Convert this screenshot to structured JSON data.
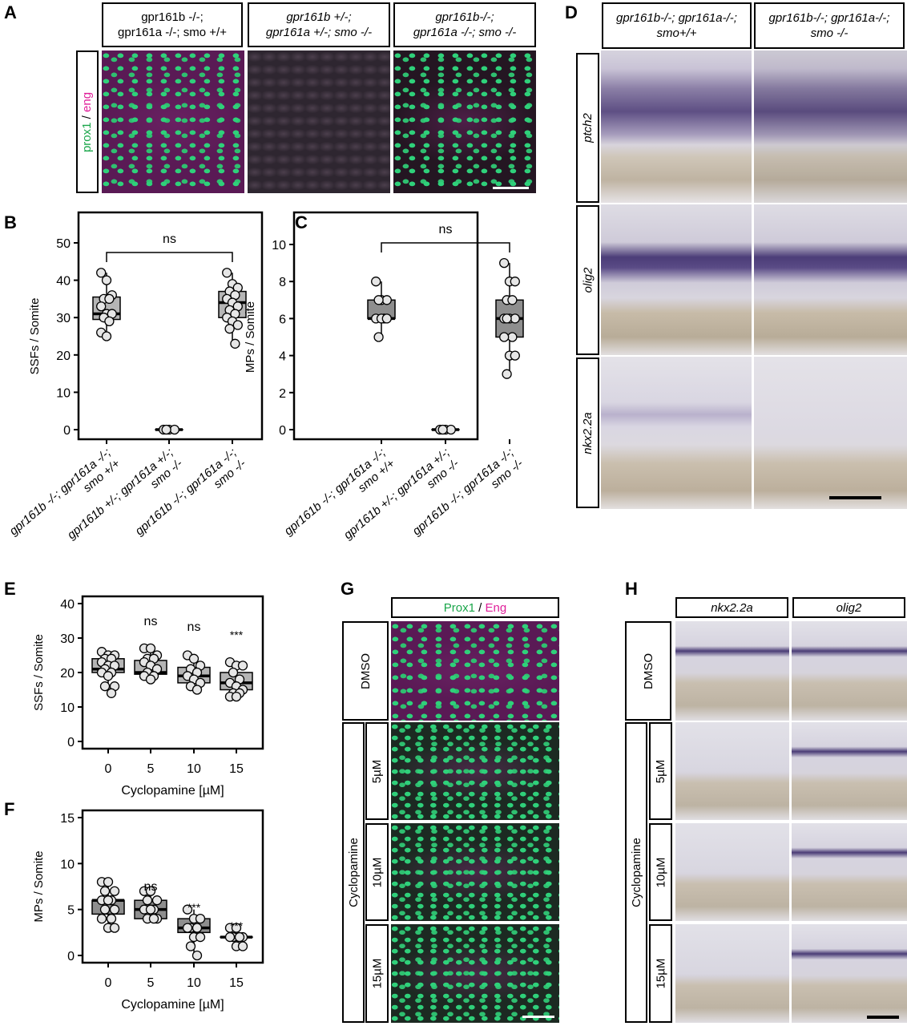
{
  "panel_letters": {
    "a": "A",
    "b": "B",
    "c": "C",
    "d": "D",
    "e": "E",
    "f": "F",
    "g": "G",
    "h": "H"
  },
  "panel_a": {
    "headers": [
      {
        "line1": "gpr161b -/-;",
        "line2": "gpr161a -/-; smo +/+"
      },
      {
        "line1": "gpr161b +/-;",
        "line2": "gpr161a +/-; smo -/-"
      },
      {
        "line1": "gpr161b-/-;",
        "line2": "gpr161a -/-; smo -/-"
      }
    ],
    "side_label_a": "prox1",
    "side_label_sep": " / ",
    "side_label_b": "eng",
    "colors": {
      "prox1": "#1aa64a",
      "eng": "#e0209a"
    }
  },
  "panel_d": {
    "headers": [
      {
        "line1": "gpr161b-/-; gpr161a-/-;",
        "line2": "smo+/+"
      },
      {
        "line1": "gpr161b-/-; gpr161a-/-;",
        "line2": "smo -/-"
      }
    ],
    "rows": [
      "ptch2",
      "olig2",
      "nkx2.2a"
    ]
  },
  "panel_g": {
    "header_a": "Prox1",
    "header_sep": " / ",
    "header_b": "Eng",
    "dmso": "DMSO",
    "cyclopamine": "Cyclopamine",
    "doses": [
      "5µM",
      "10µM",
      "15µM"
    ]
  },
  "panel_h": {
    "headers": [
      "nkx2.2a",
      "olig2"
    ],
    "dmso": "DMSO",
    "cyclopamine": "Cyclopamine",
    "doses": [
      "5µM",
      "10µM",
      "15µM"
    ]
  },
  "chart_data": [
    {
      "id": "B",
      "type": "box",
      "ylabel": "SSFs / Somite",
      "ylim": [
        0,
        55
      ],
      "yticks": [
        0,
        10,
        20,
        30,
        40,
        50
      ],
      "categories": [
        {
          "l1": "gpr161b -/-; gpr161a -/-;",
          "l2": "smo +/+"
        },
        {
          "l1": "gpr161b +/-; gpr161a +/-;",
          "l2": "smo -/-"
        },
        {
          "l1": "gpr161b -/-; gpr161a -/-;",
          "l2": "smo -/-"
        }
      ],
      "boxes": [
        {
          "q1": 29.5,
          "median": 31,
          "q3": 35.5,
          "min": 25,
          "max": 42,
          "points": [
            42,
            40,
            36,
            35,
            35,
            33,
            31,
            31,
            30,
            29,
            26,
            25
          ]
        },
        {
          "q1": 0,
          "median": 0,
          "q3": 0,
          "min": 0,
          "max": 0,
          "points": [
            0,
            0,
            0,
            0
          ]
        },
        {
          "q1": 30,
          "median": 34,
          "q3": 37,
          "min": 23,
          "max": 42,
          "points": [
            42,
            39,
            38,
            37,
            36,
            35,
            34,
            33,
            32,
            31,
            30,
            29,
            28,
            27,
            23
          ]
        }
      ],
      "fill": "#b5b5b5",
      "comparisons": [
        {
          "from": 0,
          "to": 2,
          "label": "ns"
        }
      ]
    },
    {
      "id": "C",
      "type": "box",
      "ylabel": "MPs / Somite",
      "ylim": [
        0,
        11
      ],
      "yticks": [
        0,
        2,
        4,
        6,
        8,
        10
      ],
      "categories": [
        {
          "l1": "gpr161b -/-; gpr161a -/-;",
          "l2": "smo +/+"
        },
        {
          "l1": "gpr161b +/-; gpr161a +/-;",
          "l2": "smo -/-"
        },
        {
          "l1": "gpr161b -/-; gpr161a -/-;",
          "l2": "smo -/-"
        }
      ],
      "boxes": [
        {
          "q1": 6,
          "median": 6,
          "q3": 7,
          "min": 5,
          "max": 8,
          "points": [
            8,
            7,
            7,
            7,
            6,
            6,
            6,
            6,
            5
          ]
        },
        {
          "q1": 0,
          "median": 0,
          "q3": 0,
          "min": 0,
          "max": 0,
          "points": [
            0,
            0,
            0,
            0
          ]
        },
        {
          "q1": 5,
          "median": 6,
          "q3": 7,
          "min": 3,
          "max": 9,
          "points": [
            9,
            8,
            8,
            7,
            7,
            6,
            6,
            6,
            6,
            5,
            5,
            4,
            4,
            3
          ]
        }
      ],
      "fill": "#8e8e8e",
      "comparisons": [
        {
          "from": 0,
          "to": 2,
          "label": "ns"
        }
      ]
    },
    {
      "id": "E",
      "type": "box",
      "xlabel": "Cyclopamine [µM]",
      "ylabel": "SSFs / Somite",
      "ylim": [
        0,
        40
      ],
      "yticks": [
        0,
        10,
        20,
        30,
        40
      ],
      "categories": [
        "0",
        "5",
        "10",
        "15"
      ],
      "boxes": [
        {
          "q1": 20,
          "median": 21,
          "q3": 24,
          "min": 14,
          "max": 26,
          "points": [
            26,
            25,
            25,
            24,
            24,
            23,
            22,
            22,
            21,
            20,
            20,
            19,
            16,
            16,
            14
          ]
        },
        {
          "q1": 19.5,
          "median": 20,
          "q3": 23.5,
          "min": 18,
          "max": 27,
          "points": [
            27,
            27,
            25,
            24,
            24,
            23,
            22,
            21,
            20,
            19,
            19,
            18
          ]
        },
        {
          "q1": 17,
          "median": 19,
          "q3": 21.5,
          "min": 15,
          "max": 25,
          "points": [
            25,
            24,
            22,
            21,
            20,
            19,
            18,
            17,
            16,
            15
          ]
        },
        {
          "q1": 15,
          "median": 17,
          "q3": 20,
          "min": 13,
          "max": 23,
          "points": [
            23,
            22,
            22,
            20,
            18,
            17,
            16,
            15,
            14,
            14,
            13,
            13
          ]
        }
      ],
      "fill": "#b5b5b5",
      "significance": [
        "",
        "ns",
        "ns",
        "***"
      ]
    },
    {
      "id": "F",
      "type": "box",
      "xlabel": "Cyclopamine [µM]",
      "ylabel": "MPs / Somite",
      "ylim": [
        0,
        15
      ],
      "yticks": [
        0,
        5,
        10,
        15
      ],
      "categories": [
        "0",
        "5",
        "10",
        "15"
      ],
      "boxes": [
        {
          "q1": 4.5,
          "median": 6,
          "q3": 6,
          "min": 3,
          "max": 8,
          "points": [
            8,
            8,
            7,
            7,
            6,
            6,
            6,
            5,
            5,
            4,
            4,
            3,
            3
          ]
        },
        {
          "q1": 4,
          "median": 5,
          "q3": 6,
          "min": 4,
          "max": 7,
          "points": [
            7,
            7,
            6,
            6,
            5,
            5,
            5,
            4,
            4,
            4
          ]
        },
        {
          "q1": 2.5,
          "median": 3,
          "q3": 4,
          "min": 0,
          "max": 5,
          "points": [
            5,
            4,
            4,
            3,
            3,
            3,
            2,
            2,
            1,
            0
          ]
        },
        {
          "q1": 2,
          "median": 2,
          "q3": 2,
          "min": 1,
          "max": 3,
          "points": [
            3,
            3,
            2,
            2,
            2,
            2,
            1,
            1
          ]
        }
      ],
      "fill": "#8e8e8e",
      "significance": [
        "",
        "ns",
        "***",
        "***"
      ]
    }
  ]
}
